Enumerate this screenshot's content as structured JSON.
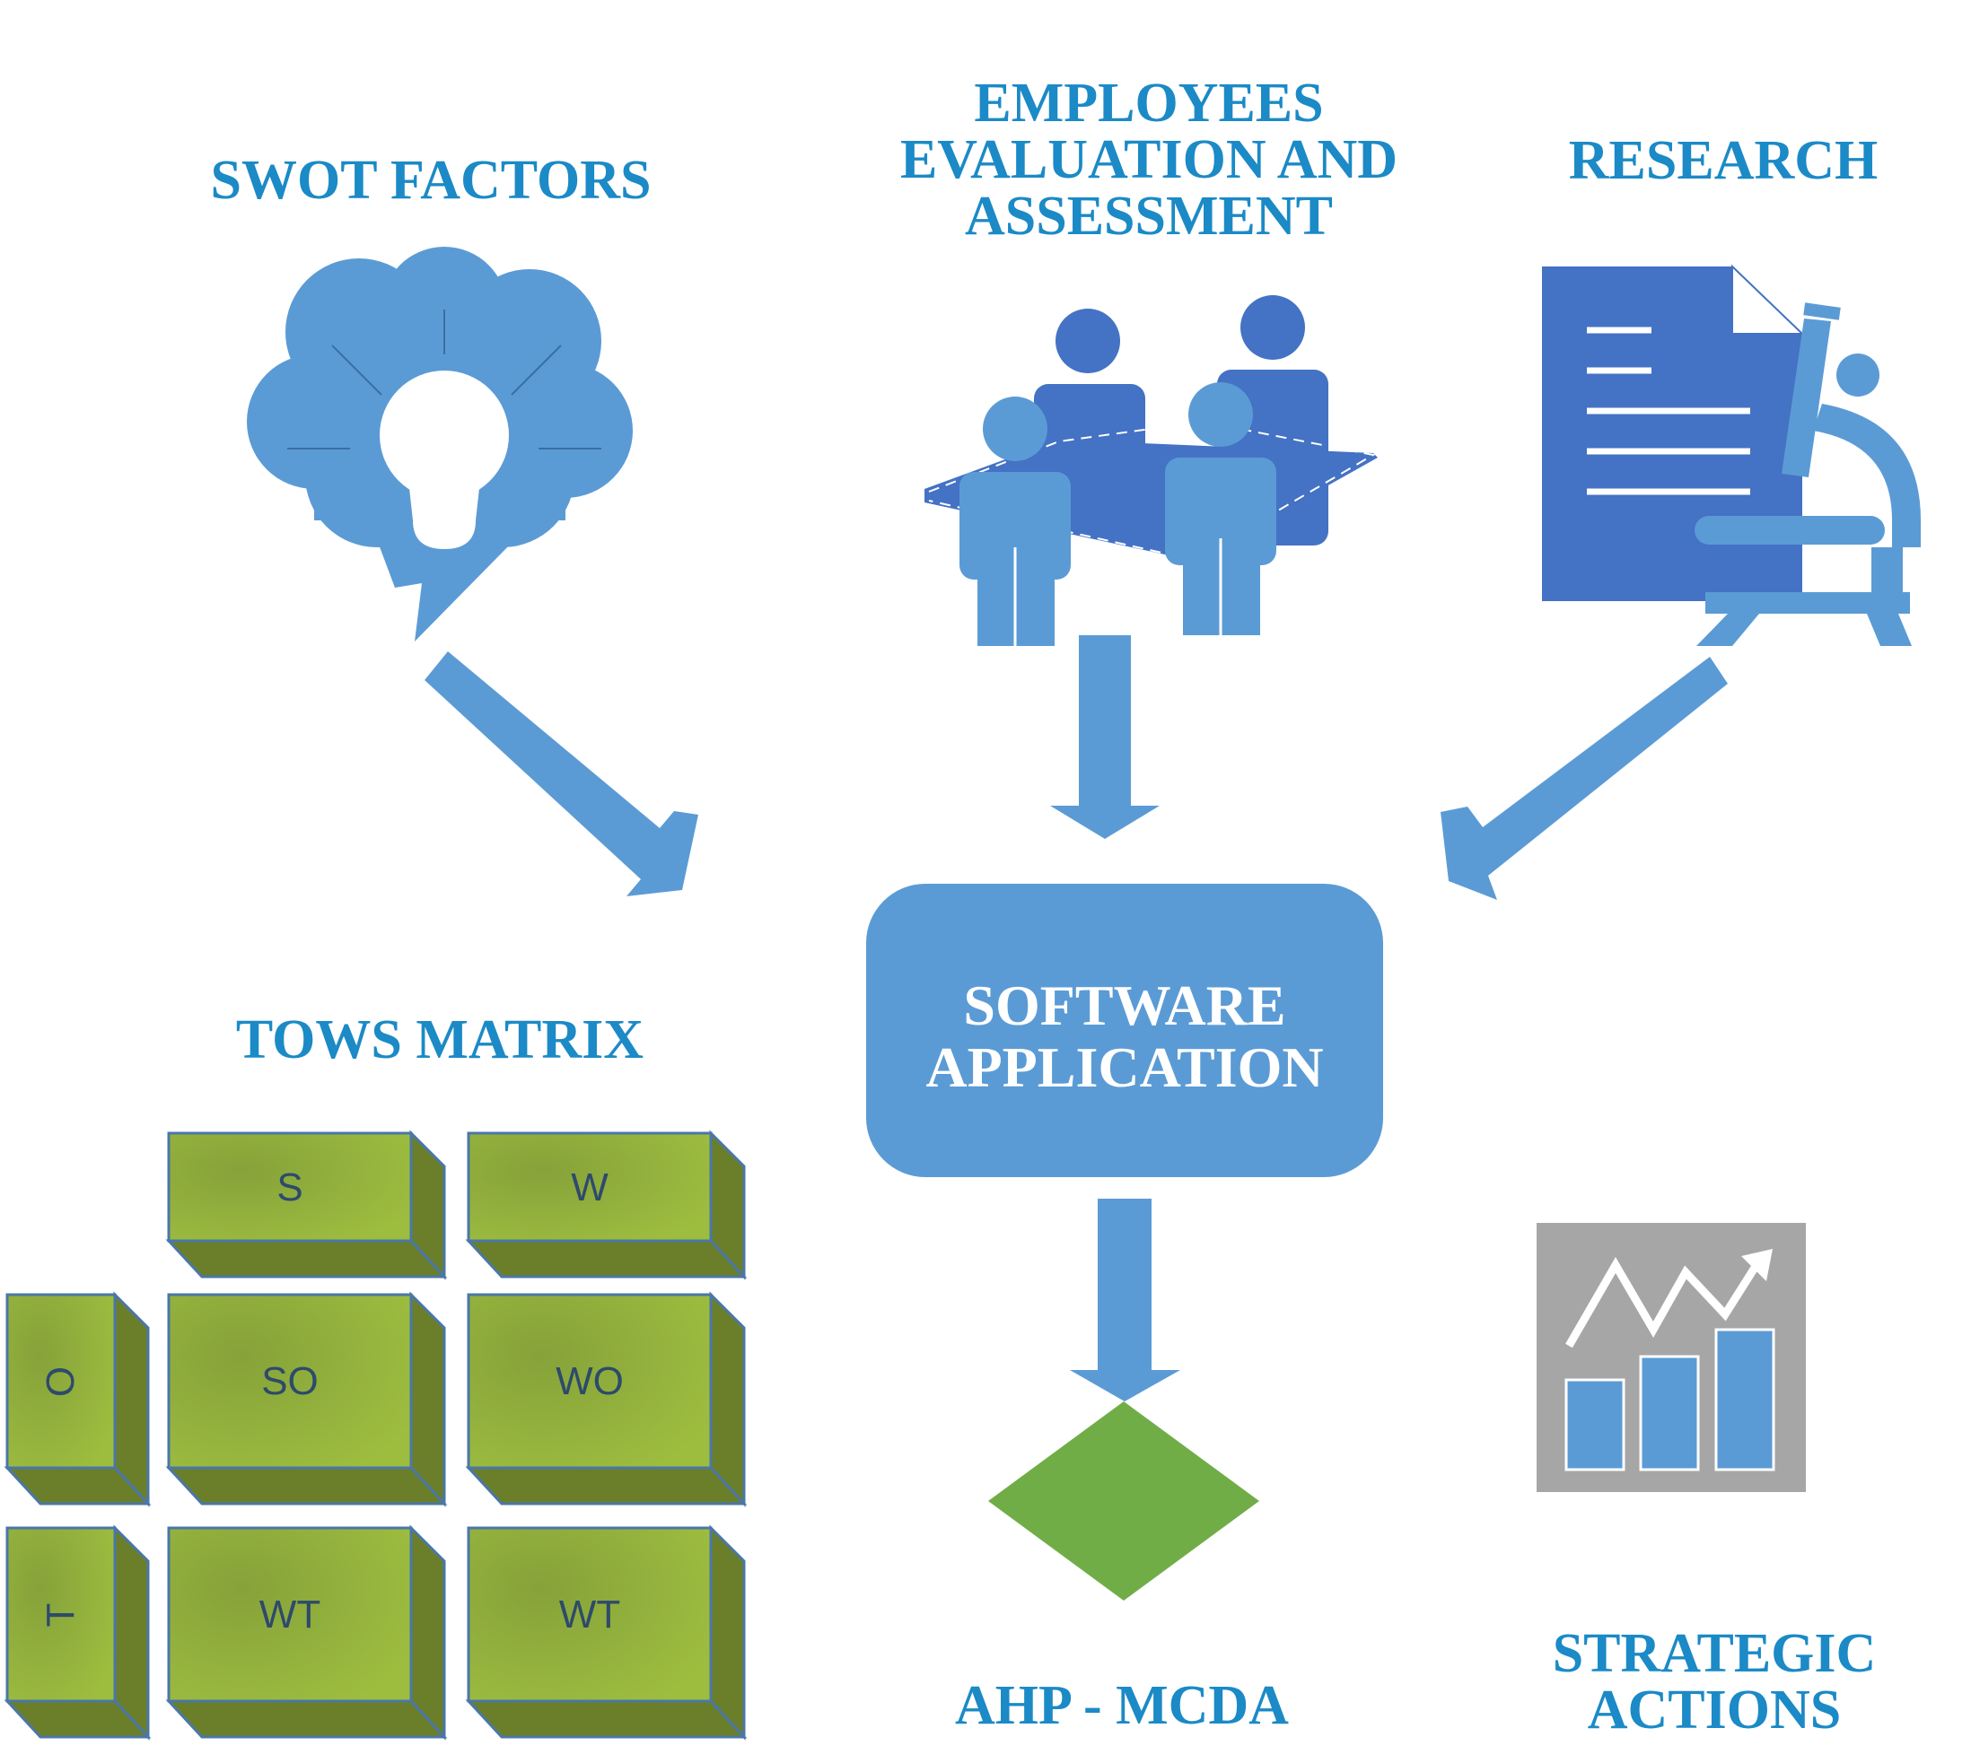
{
  "headings": {
    "swot": "SWOT FACTORS",
    "employees": [
      "EMPLOYEES",
      "EVALUATION AND",
      "ASSESSMENT"
    ],
    "research": "RESEARCH",
    "tows": "TOWS MATRIX",
    "ahp": "AHP - MCDA",
    "strategic": [
      "STRATEGIC",
      "ACTIONS"
    ]
  },
  "center_box": [
    "SOFTWARE",
    "APPLICATION"
  ],
  "tows_cells": {
    "s": "S",
    "w": "W",
    "o": "O",
    "so": "SO",
    "wo": "WO",
    "t": "T",
    "wt_1": "WT",
    "wt_2": "WT"
  },
  "colors": {
    "heading": "#1b8ac6",
    "arrow": "#5b9bd5",
    "icon_dark": "#4472c4",
    "icon_light": "#5b9bd5",
    "matrix_face": "#8fb03a",
    "matrix_side": "#6b7f2a",
    "diamond": "#70ad47",
    "chart_bg": "#a6a6a6"
  },
  "icons": [
    "brainstorm-cloud-lightbulb-icon",
    "team-meeting-icon",
    "document-microscope-icon",
    "growth-chart-icon"
  ]
}
